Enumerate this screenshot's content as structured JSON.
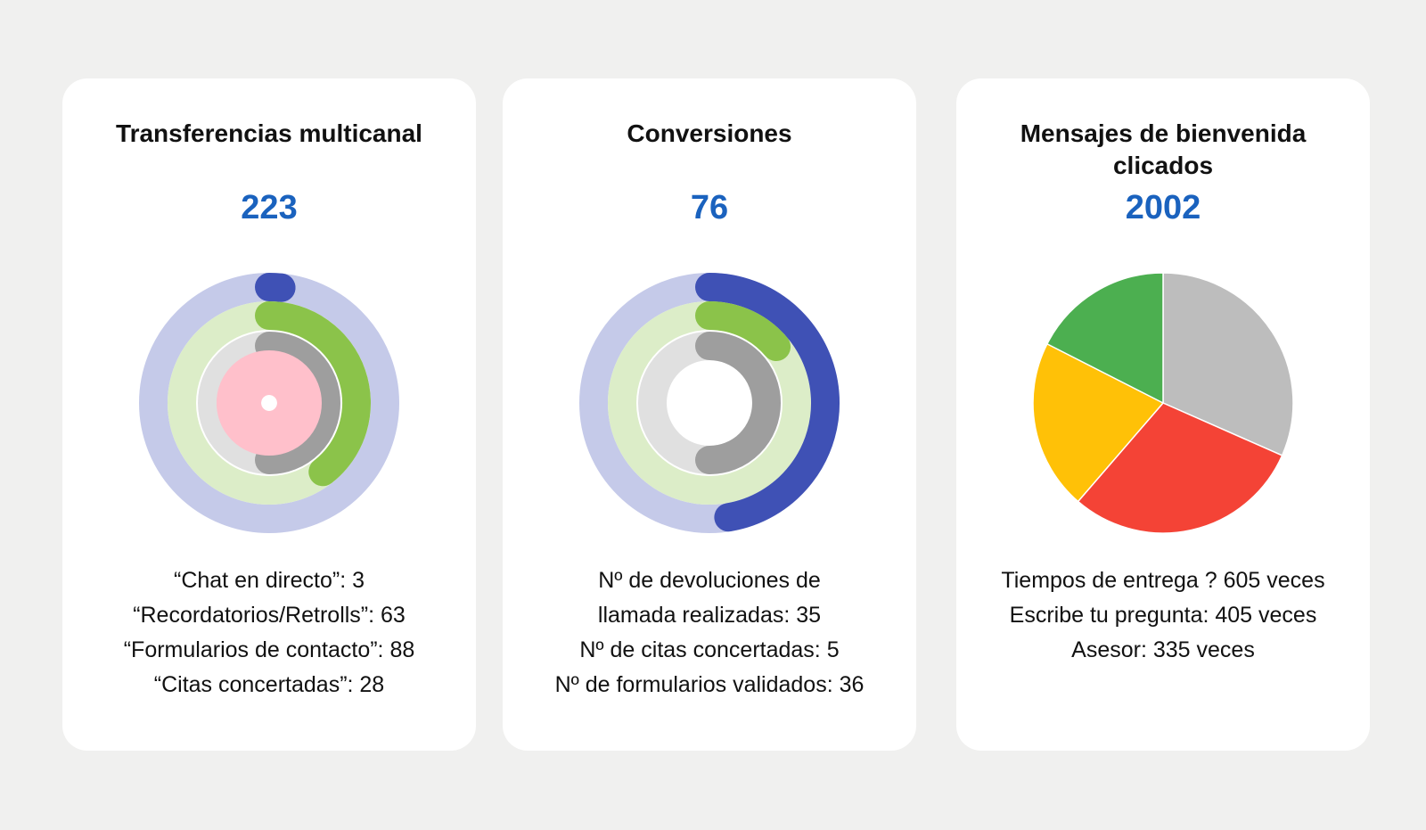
{
  "theme": {
    "accent": "#1a62be",
    "background": "#f0f0ef"
  },
  "cards": [
    {
      "title": "Transferencias multicanal",
      "total": "223",
      "lines": [
        "“Chat en directo”: 3",
        "“Recordatorios/Retrolls”: 63",
        "“Formularios de contacto”: 88",
        "“Citas concertadas”: 28"
      ]
    },
    {
      "title": "Conversiones",
      "total": "76",
      "lines": [
        "Nº de devoluciones de",
        "llamada realizadas: 35",
        "Nº de citas concertadas: 5",
        "Nº de formularios validados: 36"
      ]
    },
    {
      "title": "Mensajes de bienvenida clicados",
      "total": "2002",
      "lines": [
        "Tiempos de entrega ? 605 veces",
        "Escribe tu pregunta: 405 veces",
        "Asesor: 335 veces"
      ]
    }
  ],
  "chart_data": [
    {
      "type": "radial-bar",
      "rings": [
        {
          "value": 3,
          "max": 223,
          "color": "#3f51b5",
          "track": "#c5cae9"
        },
        {
          "value": 88,
          "max": 223,
          "color": "#8bc34a",
          "track": "#dcedc8"
        },
        {
          "value": 63,
          "max": 126,
          "color": "#9e9e9e",
          "track": "#e0e0e0"
        },
        {
          "value": 28,
          "max": 28,
          "color": "#ffc0cb",
          "track": "#ffc0cb"
        }
      ]
    },
    {
      "type": "radial-bar",
      "rings": [
        {
          "value": 36,
          "max": 76,
          "color": "#3f51b5",
          "track": "#c5cae9"
        },
        {
          "value": 5,
          "max": 36,
          "color": "#8bc34a",
          "track": "#dcedc8"
        },
        {
          "value": 35,
          "max": 70,
          "color": "#9e9e9e",
          "track": "#e0e0e0"
        }
      ]
    },
    {
      "type": "pie",
      "slices": [
        {
          "value": 605,
          "color": "#bdbdbd"
        },
        {
          "value": 569,
          "color": "#f44336"
        },
        {
          "value": 405,
          "color": "#ffc107"
        },
        {
          "value": 335,
          "color": "#4caf50"
        }
      ]
    }
  ]
}
